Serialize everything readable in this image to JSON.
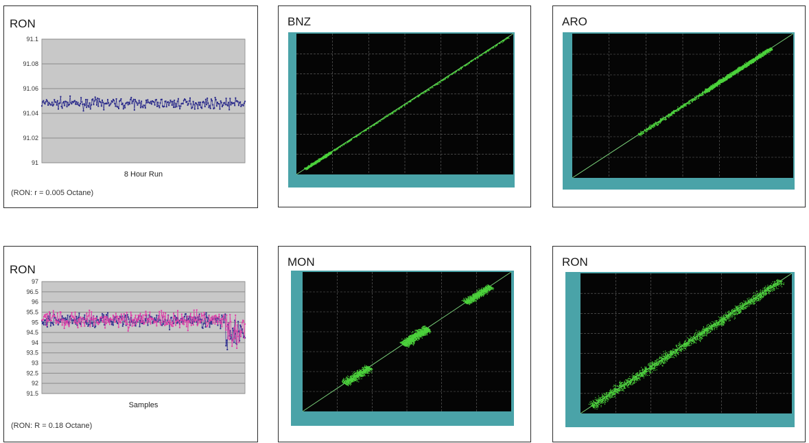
{
  "chart_data": [
    {
      "id": "ron_8hr",
      "type": "line",
      "title": "RON",
      "xlabel": "8 Hour Run",
      "note": "(RON: r = 0.005 Octane)",
      "ylim": [
        91,
        91.1
      ],
      "yticks": [
        "91.1",
        "91.08",
        "91.06",
        "91.04",
        "91.02",
        "91"
      ],
      "grid": true,
      "series": [
        {
          "color": "#2a2a8a",
          "count": 260,
          "mean": 91.048,
          "spread": 0.0035
        }
      ]
    },
    {
      "id": "bnz",
      "type": "scatter",
      "title": "BNZ",
      "grid": true,
      "colors": {
        "plot": "#050505",
        "frame": "#4aa3a8",
        "points": "#4cd23c",
        "fit": "#7ad07a"
      },
      "clusters": [
        {
          "from": 0.04,
          "to": 0.16,
          "count": 900,
          "spread": 0.008
        },
        {
          "from": 0.16,
          "to": 0.98,
          "count": 600,
          "spread": 0.006
        }
      ]
    },
    {
      "id": "aro",
      "type": "scatter",
      "title": "ARO",
      "grid": true,
      "colors": {
        "plot": "#050505",
        "frame": "#4aa3a8",
        "points": "#4cd23c",
        "fit": "#7ad07a"
      },
      "clusters": [
        {
          "from": 0.3,
          "to": 0.6,
          "count": 500,
          "spread": 0.012
        },
        {
          "from": 0.6,
          "to": 0.9,
          "count": 2200,
          "spread": 0.012
        }
      ]
    },
    {
      "id": "ron_samples",
      "type": "line",
      "title": "RON",
      "xlabel": "Samples",
      "note": "(RON: R = 0.18 Octane)",
      "ylim": [
        91.5,
        97
      ],
      "yticks": [
        "97",
        "96.5",
        "96",
        "95.5",
        "95",
        "94.5",
        "94",
        "93.5",
        "93",
        "92.5",
        "92",
        "91.5"
      ],
      "grid": true,
      "series": [
        {
          "color": "#303090",
          "count": 300,
          "mean": 95.1,
          "spread": 0.3
        },
        {
          "color": "#e040a8",
          "count": 300,
          "mean": 95.15,
          "spread": 0.35
        }
      ]
    },
    {
      "id": "mon",
      "type": "scatter",
      "title": "MON",
      "grid": true,
      "colors": {
        "plot": "#050505",
        "frame": "#4aa3a8",
        "points": "#4cd23c",
        "fit": "#7ad07a"
      },
      "clusters": [
        {
          "from": 0.2,
          "to": 0.32,
          "count": 700,
          "spread": 0.03
        },
        {
          "from": 0.48,
          "to": 0.6,
          "count": 1100,
          "spread": 0.03
        },
        {
          "from": 0.78,
          "to": 0.9,
          "count": 800,
          "spread": 0.025
        }
      ]
    },
    {
      "id": "ron_scatter",
      "type": "scatter",
      "title": "RON",
      "grid": true,
      "colors": {
        "plot": "#050505",
        "frame": "#4aa3a8",
        "points": "#4cd23c",
        "fit": "#7ad07a"
      },
      "clusters": [
        {
          "from": 0.05,
          "to": 0.95,
          "count": 2600,
          "spread": 0.03
        }
      ]
    }
  ]
}
